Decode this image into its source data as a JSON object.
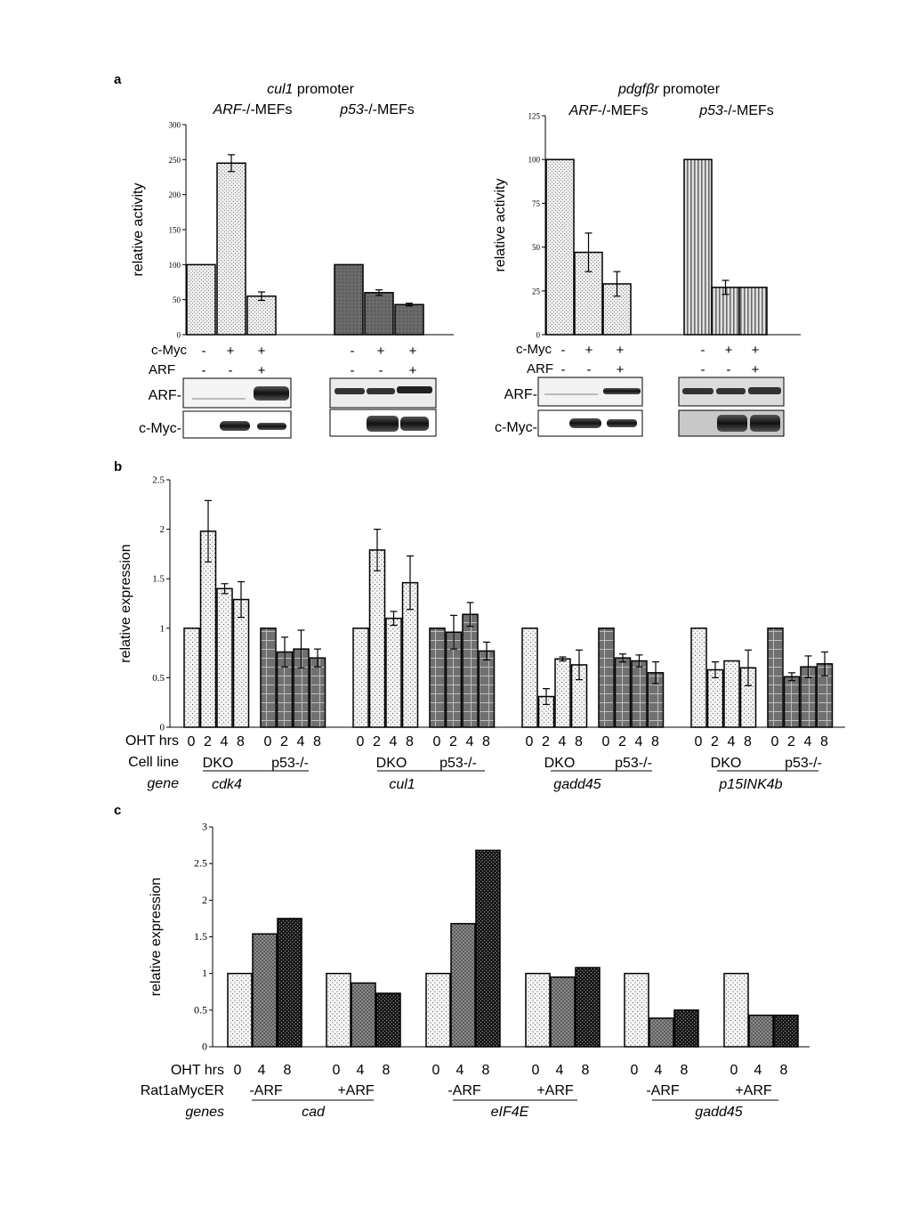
{
  "panels": {
    "a": "a",
    "b": "b",
    "c": "c"
  },
  "panel_a_left_title": {
    "italic": "cul1",
    "rest": " promoter"
  },
  "panel_a_right_title": {
    "italic": "pdgfβr",
    "rest": " promoter"
  },
  "cell_arf": {
    "italic": "ARF",
    "rest": "-/-MEFs"
  },
  "cell_p53": {
    "italic": "p53",
    "rest": "-/-MEFs"
  },
  "row_labels": {
    "cmyc": "c-Myc",
    "arf": "ARF",
    "blot_arf": "ARF-",
    "blot_cmyc": "c-Myc-",
    "oht": "OHT hrs",
    "cell_line": "Cell line",
    "gene": "gene",
    "rat": "Rat1aMycER",
    "genes": "genes"
  },
  "panel_b_groups": {
    "dko": "DKO",
    "p53": "p53-/-",
    "hours": [
      "0",
      "2",
      "4",
      "8"
    ]
  },
  "panel_c_groups": {
    "minus_arf": "-ARF",
    "plus_arf": "+ARF",
    "hours": [
      "0",
      "4",
      "8"
    ]
  },
  "chart_data": [
    {
      "type": "bar",
      "panel": "a-left",
      "ylabel": "relative activity",
      "ylim": [
        0,
        300
      ],
      "yticks": [
        "0",
        "50",
        "100",
        "150",
        "200",
        "250",
        "300"
      ],
      "categories": [
        "ARF-/- -/-",
        "ARF-/- +/-",
        "ARF-/- +/+",
        "p53-/- -/-",
        "p53-/- +/-",
        "p53-/- +/+"
      ],
      "cmyc_row": [
        "-",
        "+",
        "+",
        "-",
        "+",
        "+"
      ],
      "arf_row": [
        "-",
        "-",
        "+",
        "-",
        "-",
        "+"
      ],
      "values": [
        100,
        245,
        55,
        100,
        60,
        43
      ],
      "errors": [
        0,
        12,
        6,
        0,
        4,
        2
      ]
    },
    {
      "type": "bar",
      "panel": "a-right",
      "ylabel": "relative activity",
      "ylim": [
        0,
        125
      ],
      "yticks": [
        "0",
        "25",
        "50",
        "75",
        "100",
        "125"
      ],
      "categories": [
        "ARF-/- -/-",
        "ARF-/- +/-",
        "ARF-/- +/+",
        "p53-/- -/-",
        "p53-/- +/-",
        "p53-/- +/+"
      ],
      "cmyc_row": [
        "-",
        "+",
        "+",
        "-",
        "+",
        "+"
      ],
      "arf_row": [
        "-",
        "-",
        "+",
        "-",
        "-",
        "+"
      ],
      "values": [
        100,
        47,
        29,
        100,
        27,
        27
      ],
      "errors": [
        0,
        11,
        7,
        0,
        4,
        0
      ]
    },
    {
      "type": "bar",
      "panel": "b",
      "ylabel": "relative expression",
      "ylim": [
        0,
        2.5
      ],
      "yticks": [
        "0",
        "0.5",
        "1",
        "1.5",
        "2",
        "2.5"
      ],
      "genes": [
        "cdk4",
        "cul1",
        "gadd45",
        "p15INK4b"
      ],
      "series": [
        {
          "gene": "cdk4",
          "cell_line": "DKO",
          "hours": [
            0,
            2,
            4,
            8
          ],
          "values": [
            1,
            1.98,
            1.4,
            1.29
          ],
          "errors": [
            0,
            0.31,
            0.05,
            0.18
          ]
        },
        {
          "gene": "cdk4",
          "cell_line": "p53-/-",
          "hours": [
            0,
            2,
            4,
            8
          ],
          "values": [
            1,
            0.76,
            0.79,
            0.7
          ],
          "errors": [
            0,
            0.15,
            0.19,
            0.09
          ]
        },
        {
          "gene": "cul1",
          "cell_line": "DKO",
          "hours": [
            0,
            2,
            4,
            8
          ],
          "values": [
            1,
            1.79,
            1.1,
            1.46
          ],
          "errors": [
            0,
            0.21,
            0.07,
            0.27
          ]
        },
        {
          "gene": "cul1",
          "cell_line": "p53-/-",
          "hours": [
            0,
            2,
            4,
            8
          ],
          "values": [
            1,
            0.96,
            1.14,
            0.77
          ],
          "errors": [
            0,
            0.17,
            0.12,
            0.09
          ]
        },
        {
          "gene": "gadd45",
          "cell_line": "DKO",
          "hours": [
            0,
            2,
            4,
            8
          ],
          "values": [
            1,
            0.31,
            0.69,
            0.63
          ],
          "errors": [
            0,
            0.08,
            0.02,
            0.15
          ]
        },
        {
          "gene": "gadd45",
          "cell_line": "p53-/-",
          "hours": [
            0,
            2,
            4,
            8
          ],
          "values": [
            1,
            0.7,
            0.67,
            0.55
          ],
          "errors": [
            0,
            0.04,
            0.06,
            0.11
          ]
        },
        {
          "gene": "p15INK4b",
          "cell_line": "DKO",
          "hours": [
            0,
            2,
            4,
            8
          ],
          "values": [
            1,
            0.58,
            0.67,
            0.6
          ],
          "errors": [
            0,
            0.08,
            0,
            0.18
          ]
        },
        {
          "gene": "p15INK4b",
          "cell_line": "p53-/-",
          "hours": [
            0,
            2,
            4,
            8
          ],
          "values": [
            1,
            0.51,
            0.61,
            0.64
          ],
          "errors": [
            0,
            0.04,
            0.11,
            0.12
          ]
        }
      ]
    },
    {
      "type": "bar",
      "panel": "c",
      "ylabel": "relative expression",
      "ylim": [
        0,
        3
      ],
      "yticks": [
        "0",
        "0.5",
        "1",
        "1.5",
        "2",
        "2.5",
        "3"
      ],
      "genes": [
        "cad",
        "eIF4E",
        "gadd45"
      ],
      "series": [
        {
          "gene": "cad",
          "condition": "-ARF",
          "hours": [
            0,
            4,
            8
          ],
          "values": [
            1,
            1.54,
            1.75
          ]
        },
        {
          "gene": "cad",
          "condition": "+ARF",
          "hours": [
            0,
            4,
            8
          ],
          "values": [
            1,
            0.87,
            0.73
          ]
        },
        {
          "gene": "eIF4E",
          "condition": "-ARF",
          "hours": [
            0,
            4,
            8
          ],
          "values": [
            1,
            1.68,
            2.68
          ]
        },
        {
          "gene": "eIF4E",
          "condition": "+ARF",
          "hours": [
            0,
            4,
            8
          ],
          "values": [
            1,
            0.95,
            1.08
          ]
        },
        {
          "gene": "gadd45",
          "condition": "-ARF",
          "hours": [
            0,
            4,
            8
          ],
          "values": [
            1,
            0.39,
            0.5
          ]
        },
        {
          "gene": "gadd45",
          "condition": "+ARF",
          "hours": [
            0,
            4,
            8
          ],
          "values": [
            1,
            0.43,
            0.43
          ]
        }
      ]
    }
  ]
}
